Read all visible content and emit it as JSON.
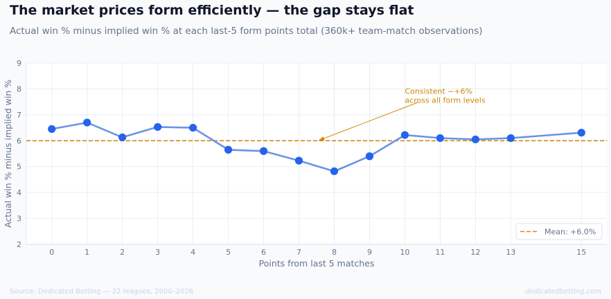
{
  "header": {
    "title": "The market prices form efficiently — the gap stays flat",
    "subtitle": "Actual win % minus implied win % at each last-5 form points total (360k+ team-match observations)"
  },
  "footer": {
    "source": "Source: Dedicated Betting — 22 leagues, 2000–2026",
    "brand": "dedicatedbetting.com"
  },
  "chart_data": {
    "type": "line",
    "xlabel": "Points from last 5 matches",
    "ylabel": "Actual win % minus implied win %",
    "x_ticks": [
      0,
      1,
      2,
      3,
      4,
      5,
      6,
      7,
      8,
      9,
      10,
      11,
      12,
      13,
      15
    ],
    "ylim": [
      2,
      9
    ],
    "y_ticks": [
      2,
      3,
      4,
      5,
      6,
      7,
      8,
      9
    ],
    "grid": true,
    "series": [
      {
        "x": [
          0,
          1,
          2,
          3,
          4,
          5,
          6,
          7,
          8,
          9,
          10,
          11,
          12,
          13,
          15
        ],
        "values": [
          6.45,
          6.7,
          6.13,
          6.53,
          6.5,
          5.65,
          5.6,
          5.23,
          4.82,
          5.4,
          6.22,
          6.1,
          6.05,
          6.1,
          6.31
        ]
      }
    ],
    "mean": {
      "value": 6.0,
      "label": "Mean: +6.0%"
    },
    "annotation": {
      "lines": [
        "Consistent ~+6%",
        "across all form levels"
      ],
      "x": 10,
      "y": 7.55,
      "arrow_x": 7.55,
      "arrow_y": 6.0
    },
    "legend_position": "bottom-right",
    "colors": {
      "line": "#6b93e6",
      "marker": "#2563eb",
      "mean": "#d4890f",
      "annotation": "#ca8a04",
      "grid": "#e8eef5",
      "axis_text": "#64748b"
    }
  }
}
